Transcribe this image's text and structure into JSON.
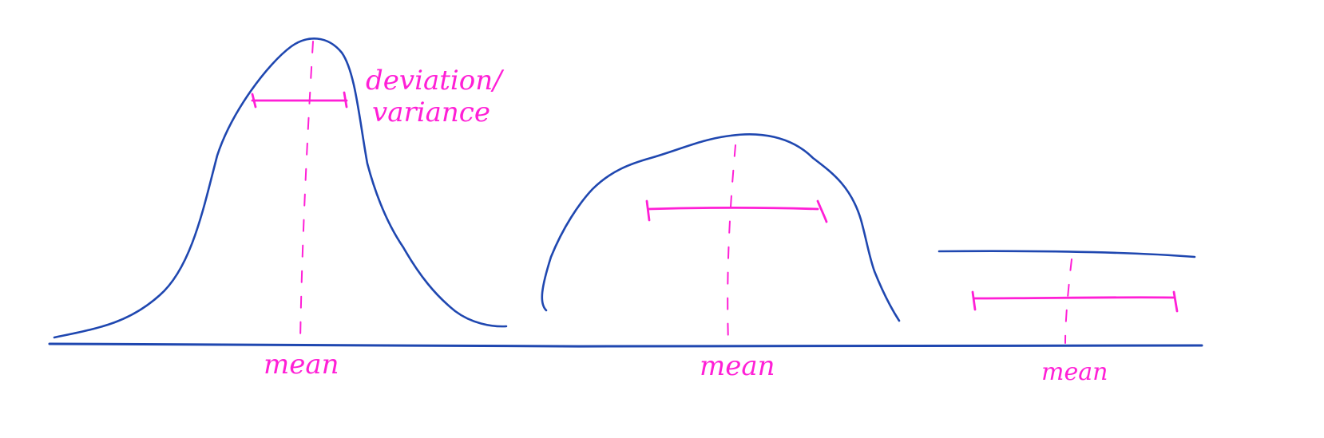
{
  "colors": {
    "curve": "#1f47b0",
    "annotation": "#ff1fd6",
    "background": "#ffffff"
  },
  "labels": {
    "deviation": "deviation/",
    "variance": "variance",
    "mean_1": "mean",
    "mean_2": "mean",
    "mean_3": "mean"
  }
}
